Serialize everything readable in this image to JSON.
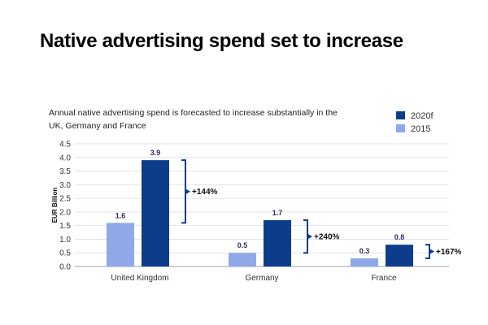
{
  "page": {
    "title": "Native advertising spend set to increase",
    "subtitle": "Annual native advertising spend is forecasted to increase substantially in the UK, Germany and France"
  },
  "chart_data": {
    "type": "bar",
    "ylabel": "EUR Billion",
    "xlabel": "",
    "ylim": [
      0,
      4.5
    ],
    "yticks": [
      "0.0",
      "0.5",
      "1.0",
      "1.5",
      "2.0",
      "2.5",
      "3.0",
      "3.5",
      "4.0",
      "4.5"
    ],
    "categories": [
      "United Kingdom",
      "Germany",
      "France"
    ],
    "series": [
      {
        "name": "2015",
        "values": [
          1.6,
          0.5,
          0.3
        ],
        "labels": [
          "1.6",
          "0.5",
          "0.3"
        ],
        "color": "#8fa9e8"
      },
      {
        "name": "2020f",
        "values": [
          3.9,
          1.7,
          0.8
        ],
        "labels": [
          "3.9",
          "1.7",
          "0.8"
        ],
        "color": "#0d3d8a"
      }
    ],
    "changes": [
      "+144%",
      "+240%",
      "+167%"
    ],
    "legend_order": [
      "2020f",
      "2015"
    ],
    "legend_position": "top-right",
    "grid": true,
    "label_color": "#3a2a5c",
    "grid_color": "#dfe3f3"
  }
}
